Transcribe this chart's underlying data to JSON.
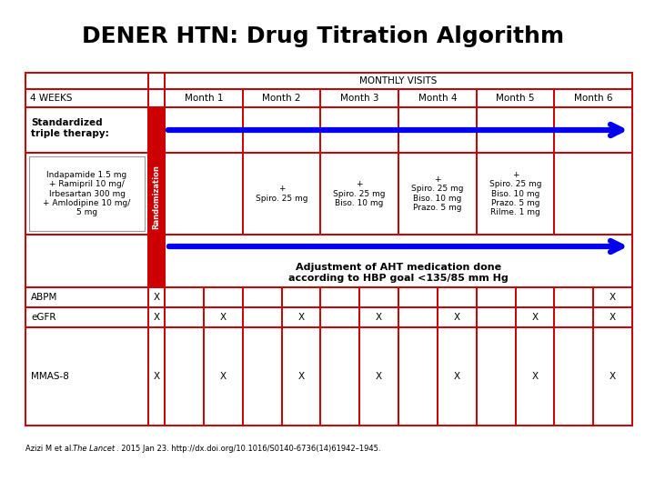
{
  "title": "DENER HTN: Drug Titration Algorithm",
  "title_fontsize": 18,
  "background_color": "#ffffff",
  "randomization_bg": "#cc0000",
  "randomization_text": "Randomization",
  "randomization_text_color": "#ffffff",
  "monthly_visits_header": "MONTHLY VISITS",
  "weeks_label": "4 WEEKS",
  "months": [
    "Month 1",
    "Month 2",
    "Month 3",
    "Month 4",
    "Month 5",
    "Month 6"
  ],
  "std_therapy_label": "Standardized\ntriple therapy:",
  "drug_box_label": "Indapamide 1.5 mg\n+ Ramipril 10 mg/\nIrbesartan 300 mg\n+ Amlodipine 10 mg/\n5 mg",
  "month2_addition": "+\nSpiro. 25 mg",
  "month3_addition": "+\nSpiro. 25 mg\nBiso. 10 mg",
  "month4_addition": "+\nSpiro. 25 mg\nBiso. 10 mg\nPrazo. 5 mg",
  "month5_addition": "+\nSpiro. 25 mg\nBiso. 10 mg\nPrazo. 5 mg\nRilme. 1 mg",
  "adjustment_text": "Adjustment of AHT medication done\naccording to HBP goal <135/85 mm Hg",
  "abpm_label": "ABPM",
  "egfr_label": "eGFR",
  "mmas_label": "MMAS-8",
  "blue_arrow_color": "#0000ee",
  "red_border": "#cc0000",
  "citation_normal": "Azizi M et al. ",
  "citation_italic": "The Lancet",
  "citation_rest": ". 2015 Jan 23. http://dx.doi.org/10.1016/S0140-6736(14)61942–1945."
}
